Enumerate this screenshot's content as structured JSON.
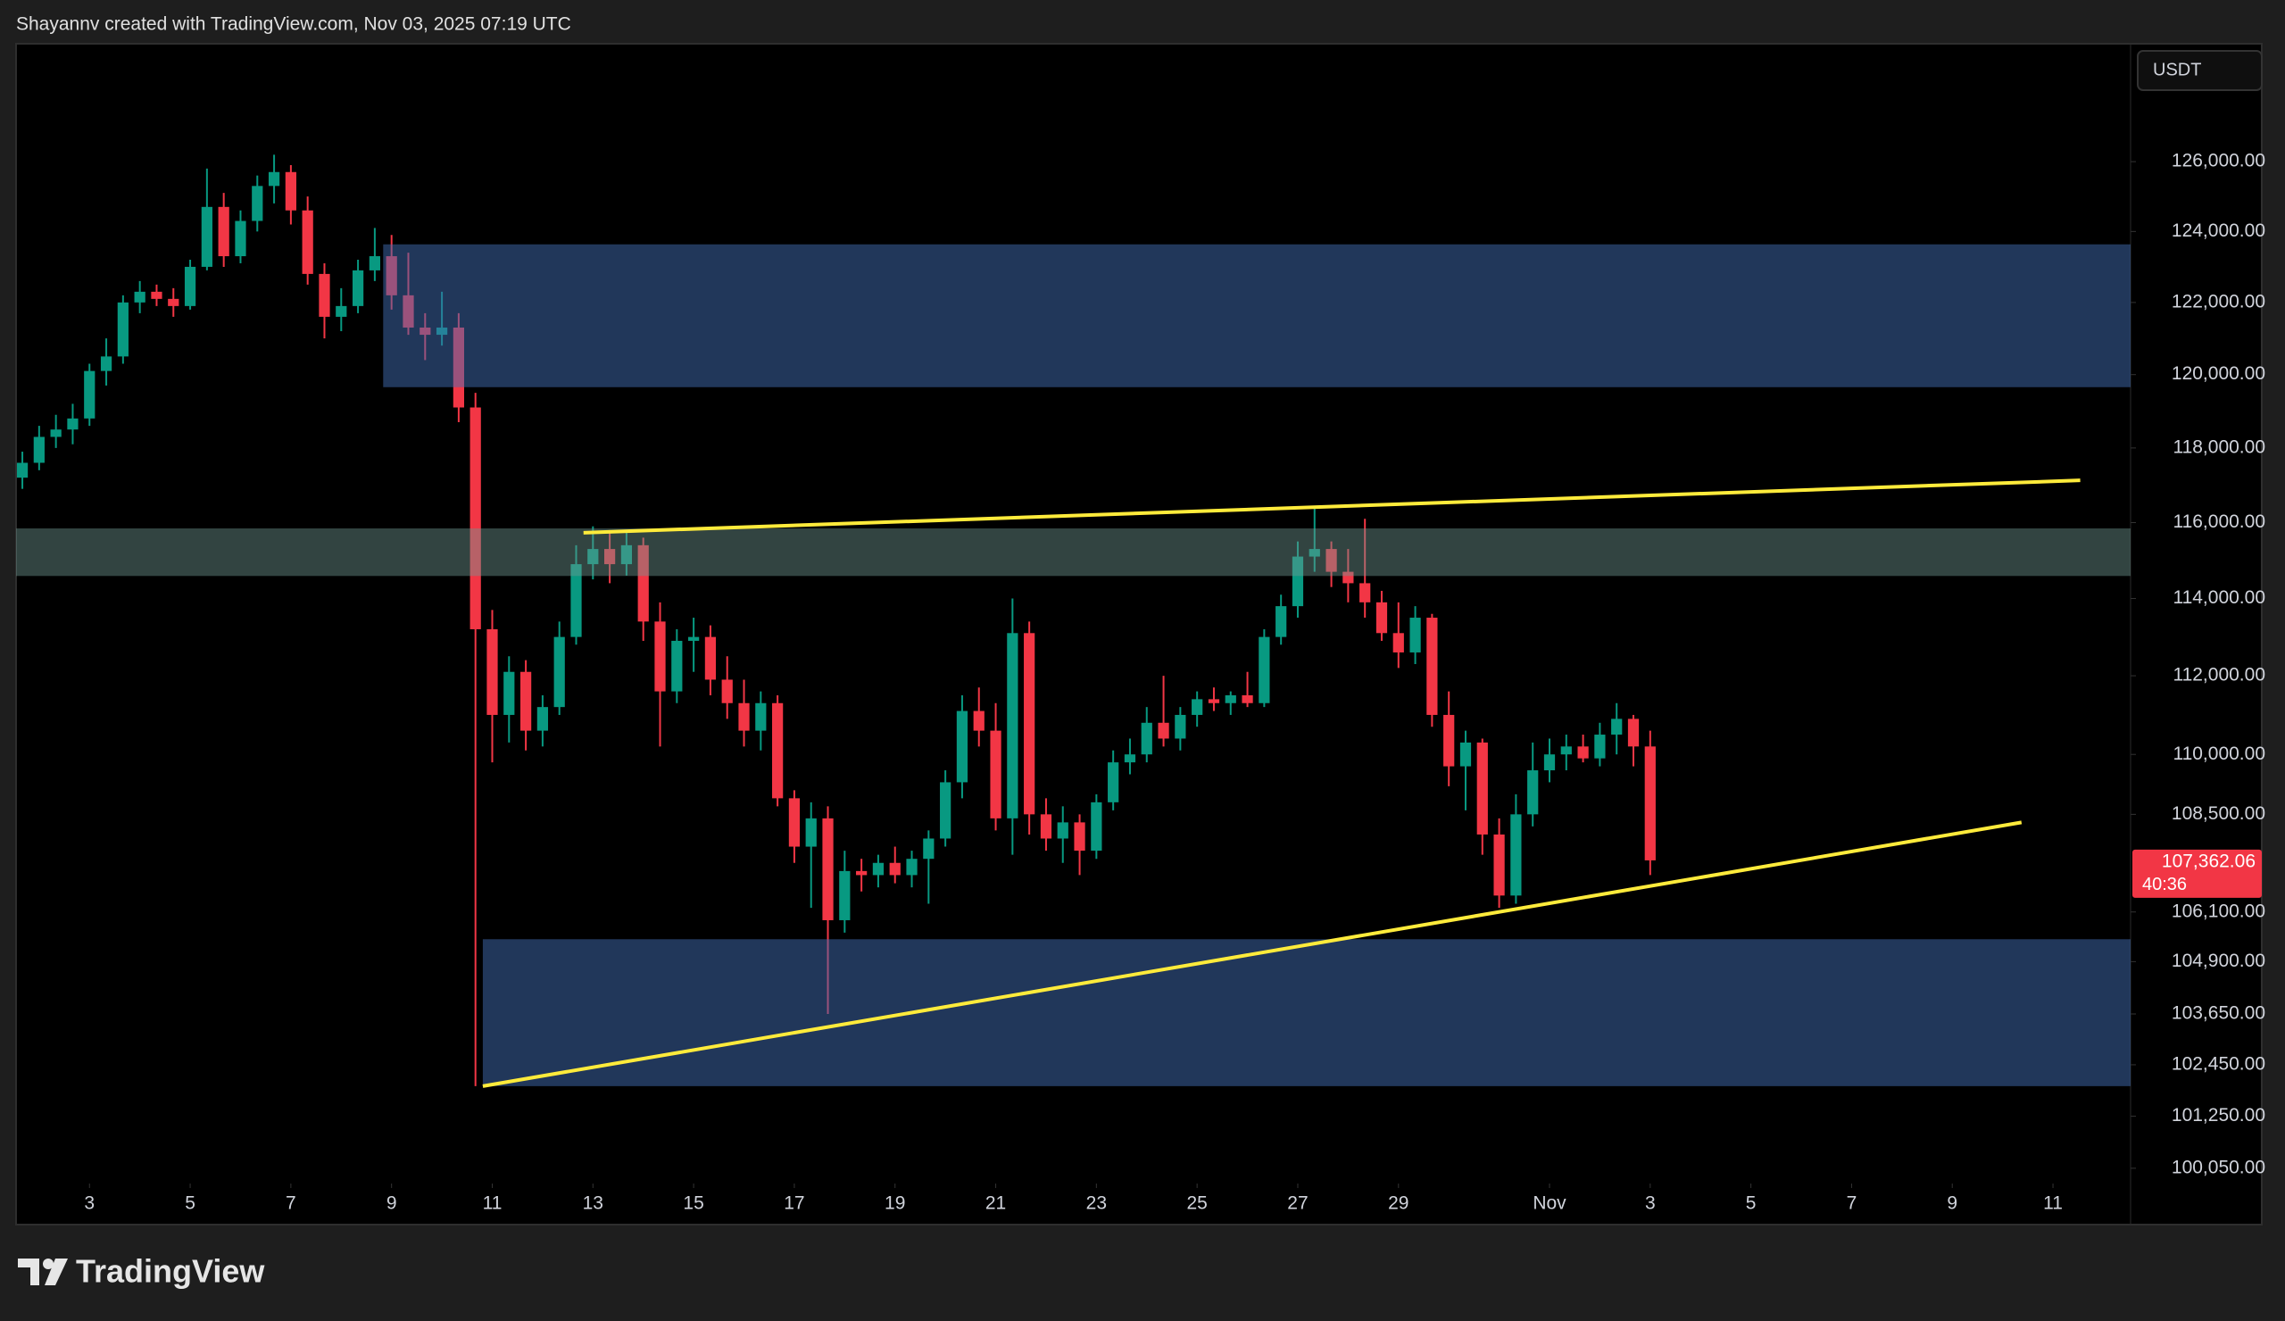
{
  "header": "Shayannv created with TradingView.com, Nov 03, 2025 07:19 UTC",
  "currency": "USDT",
  "footer": "TradingView",
  "chart_data": {
    "type": "candlestick",
    "log_scale": true,
    "up_color": "#089981",
    "down_color": "#f23645",
    "xlim": [
      "2025-10-01T13:00",
      "2025-11-12T13:00"
    ],
    "ylim": [
      99700,
      129450
    ],
    "xticks": [
      {
        "value": "2025-10-03",
        "label": "3"
      },
      {
        "value": "2025-10-05",
        "label": "5"
      },
      {
        "value": "2025-10-07",
        "label": "7"
      },
      {
        "value": "2025-10-09",
        "label": "9"
      },
      {
        "value": "2025-10-11",
        "label": "11"
      },
      {
        "value": "2025-10-13",
        "label": "13"
      },
      {
        "value": "2025-10-15",
        "label": "15"
      },
      {
        "value": "2025-10-17",
        "label": "17"
      },
      {
        "value": "2025-10-19",
        "label": "19"
      },
      {
        "value": "2025-10-21",
        "label": "21"
      },
      {
        "value": "2025-10-23",
        "label": "23"
      },
      {
        "value": "2025-10-25",
        "label": "25"
      },
      {
        "value": "2025-10-27",
        "label": "27"
      },
      {
        "value": "2025-10-29",
        "label": "29"
      },
      {
        "value": "2025-11-01",
        "label": "Nov"
      },
      {
        "value": "2025-11-03",
        "label": "3"
      },
      {
        "value": "2025-11-05",
        "label": "5"
      },
      {
        "value": "2025-11-07",
        "label": "7"
      },
      {
        "value": "2025-11-09",
        "label": "9"
      },
      {
        "value": "2025-11-11",
        "label": "11"
      }
    ],
    "yticks": [
      {
        "value": 126000,
        "label": "126,000.00"
      },
      {
        "value": 124000,
        "label": "124,000.00"
      },
      {
        "value": 122000,
        "label": "122,000.00"
      },
      {
        "value": 120000,
        "label": "120,000.00"
      },
      {
        "value": 118000,
        "label": "118,000.00"
      },
      {
        "value": 116000,
        "label": "116,000.00"
      },
      {
        "value": 114000,
        "label": "114,000.00"
      },
      {
        "value": 112000,
        "label": "112,000.00"
      },
      {
        "value": 110000,
        "label": "110,000.00"
      },
      {
        "value": 108500,
        "label": "108,500.00"
      },
      {
        "value": 106100,
        "label": "106,100.00"
      },
      {
        "value": 104900,
        "label": "104,900.00"
      },
      {
        "value": 103650,
        "label": "103,650.00"
      },
      {
        "value": 102450,
        "label": "102,450.00"
      },
      {
        "value": 101250,
        "label": "101,250.00"
      },
      {
        "value": 100050,
        "label": "100,050.00"
      }
    ],
    "x": [
      "2025-10-01T16:00",
      "2025-10-02T00:00",
      "2025-10-02T08:00",
      "2025-10-02T16:00",
      "2025-10-03T00:00",
      "2025-10-03T08:00",
      "2025-10-03T16:00",
      "2025-10-04T00:00",
      "2025-10-04T08:00",
      "2025-10-04T16:00",
      "2025-10-05T00:00",
      "2025-10-05T08:00",
      "2025-10-05T16:00",
      "2025-10-06T00:00",
      "2025-10-06T08:00",
      "2025-10-06T16:00",
      "2025-10-07T00:00",
      "2025-10-07T08:00",
      "2025-10-07T16:00",
      "2025-10-08T00:00",
      "2025-10-08T08:00",
      "2025-10-08T16:00",
      "2025-10-09T00:00",
      "2025-10-09T08:00",
      "2025-10-09T16:00",
      "2025-10-10T00:00",
      "2025-10-10T08:00",
      "2025-10-10T16:00",
      "2025-10-11T00:00",
      "2025-10-11T08:00",
      "2025-10-11T16:00",
      "2025-10-12T00:00",
      "2025-10-12T08:00",
      "2025-10-12T16:00",
      "2025-10-13T00:00",
      "2025-10-13T08:00",
      "2025-10-13T16:00",
      "2025-10-14T00:00",
      "2025-10-14T08:00",
      "2025-10-14T16:00",
      "2025-10-15T00:00",
      "2025-10-15T08:00",
      "2025-10-15T16:00",
      "2025-10-16T00:00",
      "2025-10-16T08:00",
      "2025-10-16T16:00",
      "2025-10-17T00:00",
      "2025-10-17T08:00",
      "2025-10-17T16:00",
      "2025-10-18T00:00",
      "2025-10-18T08:00",
      "2025-10-18T16:00",
      "2025-10-19T00:00",
      "2025-10-19T08:00",
      "2025-10-19T16:00",
      "2025-10-20T00:00",
      "2025-10-20T08:00",
      "2025-10-20T16:00",
      "2025-10-21T00:00",
      "2025-10-21T08:00",
      "2025-10-21T16:00",
      "2025-10-22T00:00",
      "2025-10-22T08:00",
      "2025-10-22T16:00",
      "2025-10-23T00:00",
      "2025-10-23T08:00",
      "2025-10-23T16:00",
      "2025-10-24T00:00",
      "2025-10-24T08:00",
      "2025-10-24T16:00",
      "2025-10-25T00:00",
      "2025-10-25T08:00",
      "2025-10-25T16:00",
      "2025-10-26T00:00",
      "2025-10-26T08:00",
      "2025-10-26T16:00",
      "2025-10-27T00:00",
      "2025-10-27T08:00",
      "2025-10-27T16:00",
      "2025-10-28T00:00",
      "2025-10-28T08:00",
      "2025-10-28T16:00",
      "2025-10-29T00:00",
      "2025-10-29T08:00",
      "2025-10-29T16:00",
      "2025-10-30T00:00",
      "2025-10-30T08:00",
      "2025-10-30T16:00",
      "2025-10-31T00:00",
      "2025-10-31T08:00",
      "2025-10-31T16:00",
      "2025-11-01T00:00",
      "2025-11-01T08:00",
      "2025-11-01T16:00",
      "2025-11-02T00:00",
      "2025-11-02T08:00",
      "2025-11-02T16:00",
      "2025-11-03T00:00"
    ],
    "open": [
      117200,
      117600,
      118300,
      118500,
      118800,
      120100,
      120500,
      122000,
      122300,
      122100,
      121900,
      123000,
      124700,
      123300,
      124300,
      125300,
      125700,
      124600,
      122800,
      121600,
      121900,
      122900,
      123300,
      122200,
      121300,
      121100,
      121300,
      119100,
      113200,
      111000,
      112100,
      110600,
      111200,
      113000,
      114900,
      115300,
      114900,
      115400,
      113400,
      111600,
      112900,
      113000,
      111900,
      111300,
      110600,
      111300,
      108900,
      107700,
      108400,
      105900,
      107100,
      107000,
      107300,
      107000,
      107400,
      107900,
      109300,
      111100,
      110600,
      108400,
      113100,
      108500,
      107900,
      108300,
      107600,
      108800,
      109800,
      110000,
      110800,
      110400,
      111000,
      111400,
      111300,
      111500,
      111300,
      113000,
      113800,
      115100,
      115300,
      114700,
      114400,
      113900,
      113100,
      112600,
      113500,
      111000,
      109700,
      110300,
      108000,
      106500,
      108500,
      109600,
      110000,
      110200,
      109900,
      110500,
      110900,
      110200
    ],
    "high": [
      117900,
      118600,
      118900,
      119200,
      120300,
      121000,
      122200,
      122600,
      122500,
      122400,
      123200,
      125800,
      125100,
      124600,
      125600,
      126200,
      125900,
      125000,
      123100,
      122400,
      123200,
      124100,
      123900,
      123400,
      121700,
      122300,
      121700,
      119500,
      113700,
      112500,
      112400,
      111500,
      113400,
      115400,
      115900,
      115800,
      115800,
      115600,
      113900,
      113200,
      113500,
      113300,
      112500,
      111900,
      111600,
      111500,
      109100,
      108800,
      108700,
      107600,
      107400,
      107500,
      107700,
      107600,
      108100,
      109600,
      111500,
      111700,
      111300,
      114000,
      113400,
      108900,
      108700,
      108500,
      109000,
      110100,
      110400,
      111200,
      112000,
      111200,
      111600,
      111700,
      111600,
      112100,
      113200,
      114100,
      115500,
      116400,
      115500,
      115300,
      116100,
      114200,
      113900,
      113800,
      113600,
      111600,
      110600,
      110400,
      108400,
      109000,
      110300,
      110400,
      110500,
      110500,
      110800,
      111300,
      111000,
      110600
    ],
    "low": [
      116900,
      117400,
      118000,
      118100,
      118600,
      119700,
      120300,
      121700,
      121900,
      121600,
      121800,
      122900,
      123000,
      123100,
      124000,
      124800,
      124200,
      122500,
      121000,
      121200,
      121700,
      122600,
      121800,
      121100,
      120400,
      120800,
      118700,
      101950,
      109800,
      110300,
      110100,
      110200,
      111000,
      112800,
      114500,
      114400,
      114600,
      112900,
      110200,
      111300,
      112100,
      111500,
      110900,
      110200,
      110100,
      108700,
      107300,
      106200,
      103650,
      105600,
      106600,
      106700,
      106800,
      106700,
      106300,
      107700,
      108900,
      110200,
      108100,
      107500,
      108000,
      107600,
      107300,
      107000,
      107400,
      108600,
      109500,
      109800,
      110200,
      110100,
      110700,
      111100,
      111000,
      111200,
      111200,
      112800,
      113500,
      114700,
      114300,
      113900,
      113500,
      112900,
      112200,
      112300,
      110700,
      109200,
      108600,
      107500,
      106200,
      106300,
      108200,
      109300,
      109600,
      109800,
      109700,
      110000,
      109700,
      107000
    ],
    "close": [
      117600,
      118300,
      118500,
      118800,
      120100,
      120500,
      122000,
      122300,
      122100,
      121900,
      123000,
      124700,
      123300,
      124300,
      125300,
      125700,
      124600,
      122800,
      121600,
      121900,
      122900,
      123300,
      122200,
      121300,
      121100,
      121300,
      119100,
      113200,
      111000,
      112100,
      110600,
      111200,
      113000,
      114900,
      115300,
      114900,
      115400,
      113400,
      111600,
      112900,
      113000,
      111900,
      111300,
      110600,
      111300,
      108900,
      107700,
      108400,
      105900,
      107100,
      107000,
      107300,
      107000,
      107400,
      107900,
      109300,
      111100,
      110600,
      108400,
      113100,
      108500,
      107900,
      108300,
      107600,
      108800,
      109800,
      110000,
      110800,
      110400,
      111000,
      111400,
      111300,
      111500,
      111300,
      113000,
      113800,
      115100,
      115300,
      114700,
      114400,
      113900,
      113100,
      112600,
      113500,
      111000,
      109700,
      110300,
      108000,
      106500,
      108500,
      109600,
      110000,
      110200,
      109900,
      110500,
      110900,
      110200,
      107362.06
    ],
    "zones": [
      {
        "start": "2025-10-08T20:00",
        "top": 123635,
        "bottom": 119655,
        "color": "rgba(66,110,180,0.5)"
      },
      {
        "start": "2025-10-01T13:00",
        "top": 115845,
        "bottom": 114590,
        "color": "rgba(110,150,145,0.45)"
      },
      {
        "start": "2025-10-10T19:30",
        "top": 105440,
        "bottom": 101950,
        "color": "rgba(66,110,180,0.5)"
      }
    ],
    "trendlines": [
      {
        "x": [
          "2025-10-12T19:30",
          "2025-11-11T13:00"
        ],
        "y": [
          115730,
          117128
        ],
        "color": "#ffeb3b"
      },
      {
        "x": [
          "2025-10-10T19:30",
          "2025-11-10T09:00"
        ],
        "y": [
          101950,
          108300
        ],
        "color": "#ffeb3b"
      }
    ],
    "last_price": {
      "value": 107362.06,
      "label": "107,362.06"
    },
    "countdown": "40:36"
  }
}
